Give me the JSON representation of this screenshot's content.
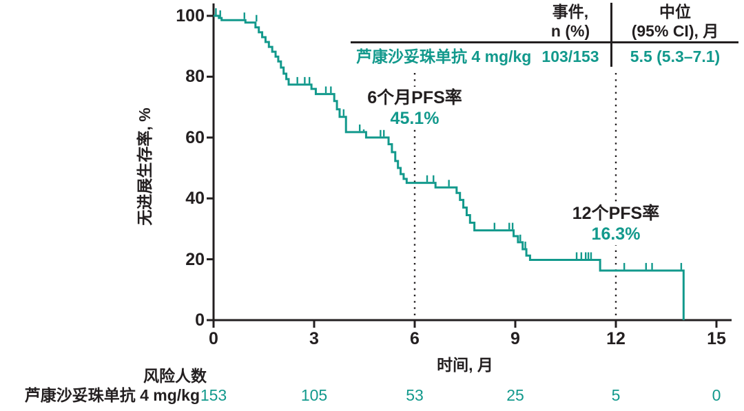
{
  "colors": {
    "teal": "#12998c",
    "ink": "#231f20",
    "background": "#ffffff"
  },
  "summary_table": {
    "col1_header": [
      "事件,",
      "n (%)"
    ],
    "col2_header": [
      "中位",
      "(95% CI), 月"
    ],
    "row_label": "芦康沙妥珠单抗 4 mg/kg",
    "row_events": "103/153",
    "row_median": "5.5 (5.3–7.1)"
  },
  "annotations": [
    {
      "title": "6个月PFS率",
      "value": "45.1%",
      "t": 6
    },
    {
      "title": "12个PFS率",
      "value": "16.3%",
      "t": 12
    }
  ],
  "axes": {
    "x_label": "时间, 月",
    "y_label": "无进展生存率, %",
    "x_ticks": [
      0,
      3,
      6,
      9,
      12,
      15
    ],
    "y_ticks": [
      0,
      20,
      40,
      60,
      80,
      100
    ],
    "x_range": [
      0,
      15
    ],
    "y_range": [
      0,
      100
    ]
  },
  "risk_table": {
    "title": "风险人数",
    "row_label": "芦康沙妥珠单抗 4 mg/kg",
    "times": [
      0,
      3,
      6,
      9,
      12,
      15
    ],
    "values": [
      153,
      105,
      53,
      25,
      5,
      0
    ]
  },
  "chart_data": {
    "type": "line",
    "subtype": "kaplan-meier-step",
    "title": "",
    "xlabel": "时间, 月",
    "ylabel": "无进展生存率, %",
    "xlim": [
      0,
      15
    ],
    "ylim": [
      0,
      100
    ],
    "grid": false,
    "reference_lines_months": [
      6,
      12
    ],
    "six_month_pfs_pct": 45.1,
    "twelve_month_pfs_pct": 16.3,
    "median_pfs_months": 5.5,
    "median_pfs_ci95": [
      5.3,
      7.1
    ],
    "events_n": 103,
    "total_n": 153,
    "series": [
      {
        "name": "芦康沙妥珠单抗 4 mg/kg",
        "color": "#12998c",
        "start": [
          0,
          100
        ],
        "steps": [
          [
            0.16,
            99.3
          ],
          [
            0.24,
            98.6
          ],
          [
            0.95,
            97.8
          ],
          [
            1.25,
            96.2
          ],
          [
            1.35,
            94.6
          ],
          [
            1.45,
            93.0
          ],
          [
            1.55,
            91.4
          ],
          [
            1.65,
            89.8
          ],
          [
            1.75,
            88.2
          ],
          [
            1.85,
            86.6
          ],
          [
            1.93,
            85.0
          ],
          [
            2.01,
            83.0
          ],
          [
            2.09,
            81.0
          ],
          [
            2.17,
            79.2
          ],
          [
            2.24,
            77.4
          ],
          [
            2.92,
            76.0
          ],
          [
            3.05,
            74.3
          ],
          [
            3.6,
            72.0
          ],
          [
            3.68,
            69.3
          ],
          [
            3.76,
            66.8
          ],
          [
            3.95,
            61.8
          ],
          [
            4.55,
            60.0
          ],
          [
            5.22,
            57.8
          ],
          [
            5.32,
            55.2
          ],
          [
            5.42,
            52.3
          ],
          [
            5.5,
            50.0
          ],
          [
            5.58,
            48.0
          ],
          [
            5.67,
            46.4
          ],
          [
            5.76,
            45.1
          ],
          [
            6.62,
            43.6
          ],
          [
            7.25,
            41.8
          ],
          [
            7.35,
            39.5
          ],
          [
            7.45,
            37.0
          ],
          [
            7.55,
            34.5
          ],
          [
            7.65,
            32.0
          ],
          [
            7.78,
            29.5
          ],
          [
            8.95,
            27.6
          ],
          [
            9.08,
            25.6
          ],
          [
            9.22,
            23.3
          ],
          [
            9.33,
            21.2
          ],
          [
            9.44,
            19.8
          ],
          [
            11.53,
            16.3
          ],
          [
            14.02,
            0
          ]
        ],
        "censors": [
          [
            0.07,
            100
          ],
          [
            0.2,
            99.3
          ],
          [
            0.92,
            98.6
          ],
          [
            1.28,
            97.8
          ],
          [
            2.5,
            77.4
          ],
          [
            2.72,
            77.4
          ],
          [
            2.86,
            77.4
          ],
          [
            3.35,
            74.3
          ],
          [
            3.5,
            74.3
          ],
          [
            3.88,
            66.8
          ],
          [
            4.36,
            61.8
          ],
          [
            4.48,
            61.8
          ],
          [
            4.98,
            60.0
          ],
          [
            5.08,
            60.0
          ],
          [
            6.37,
            45.1
          ],
          [
            6.56,
            45.1
          ],
          [
            7.02,
            43.6
          ],
          [
            8.38,
            29.5
          ],
          [
            8.82,
            29.5
          ],
          [
            8.92,
            29.5
          ],
          [
            9.15,
            25.6
          ],
          [
            9.3,
            23.3
          ],
          [
            10.83,
            19.8
          ],
          [
            10.97,
            19.8
          ],
          [
            11.1,
            19.8
          ],
          [
            11.18,
            19.8
          ],
          [
            11.26,
            19.8
          ],
          [
            12.25,
            16.3
          ],
          [
            12.9,
            16.3
          ],
          [
            13.08,
            16.3
          ],
          [
            13.95,
            16.3
          ]
        ],
        "number_at_risk": [
          153,
          105,
          53,
          25,
          5,
          0
        ]
      }
    ]
  }
}
